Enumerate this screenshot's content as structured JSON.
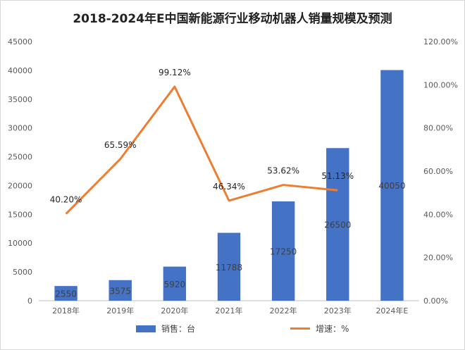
{
  "title": "2018-2024年E中国新能源行业移动机器人销量规模及预测",
  "chart_data": {
    "type": "bar+line",
    "categories": [
      "2018年",
      "2019年",
      "2020年",
      "2021年",
      "2022年",
      "2023年",
      "2024年E"
    ],
    "series": [
      {
        "name": "销售：台",
        "type": "bar",
        "axis": "left",
        "values": [
          2550,
          3575,
          5920,
          11788,
          17250,
          26500,
          40050
        ],
        "labels": [
          "2550",
          "3575",
          "5920",
          "11788",
          "17250",
          "26500",
          "40050"
        ],
        "color": "#4472C4"
      },
      {
        "name": "增速：%",
        "type": "line",
        "axis": "right",
        "values": [
          40.2,
          65.59,
          99.12,
          46.34,
          53.62,
          51.13,
          null
        ],
        "labels": [
          "40.20%",
          "65.59%",
          "99.12%",
          "46.34%",
          "53.62%",
          "51.13%",
          ""
        ],
        "color": "#ED7D31"
      }
    ],
    "y_left": {
      "min": 0,
      "max": 45000,
      "step": 5000,
      "ticks": [
        "0",
        "5000",
        "10000",
        "15000",
        "20000",
        "25000",
        "30000",
        "35000",
        "40000",
        "45000"
      ]
    },
    "y_right": {
      "min": 0,
      "max": 120,
      "step": 20,
      "ticks": [
        "0.00%",
        "20.00%",
        "40.00%",
        "60.00%",
        "80.00%",
        "100.00%",
        "120.00%"
      ]
    },
    "grid": false,
    "legend_position": "bottom"
  },
  "legend": {
    "bar_label": "销售：台",
    "line_label": "增速：%"
  }
}
